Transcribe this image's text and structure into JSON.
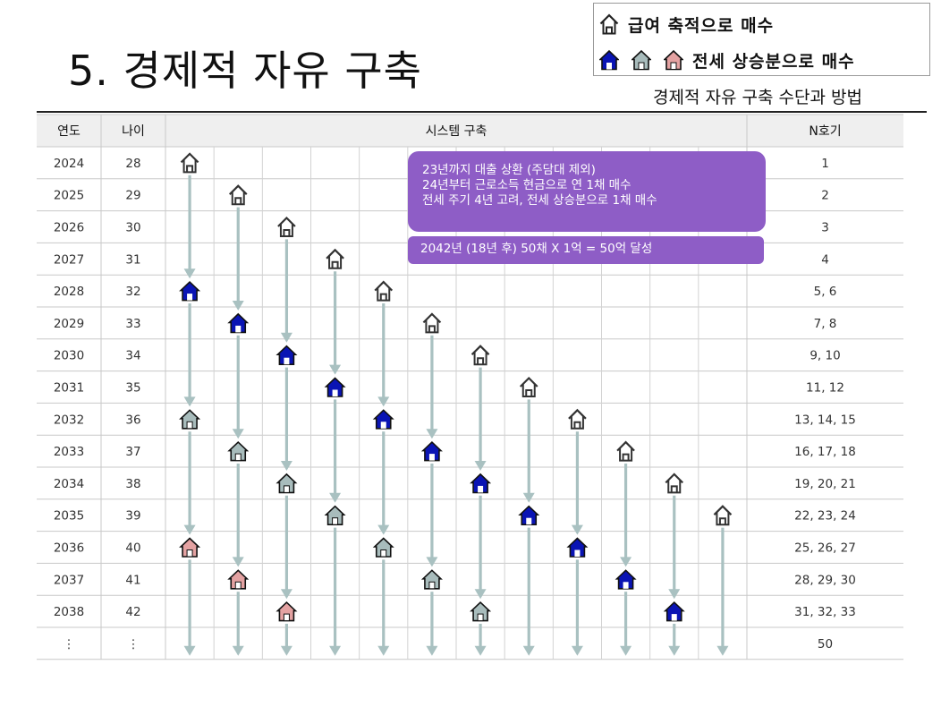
{
  "title": "5. 경제적 자유 구축",
  "subtitle": "경제적 자유 구축 수단과 방법",
  "legend": {
    "row1_text": "급여 축적으로 매수",
    "row2_text": "전세 상승분으로 매수",
    "icons": [
      "house-outline-icon",
      "house-blue-icon",
      "house-gray-icon",
      "house-pink-icon"
    ]
  },
  "colors": {
    "blue": "#0a14b4",
    "gray": "#a8bcbc",
    "pink": "#e4a2a2",
    "arrow": "#a9c1c1",
    "popup": "#8e5dc6",
    "header_bg": "#efefef"
  },
  "table": {
    "headers": [
      "연도",
      "나이",
      "시스템 구축",
      "N호기"
    ],
    "rows": [
      {
        "year": "2024",
        "age": "28",
        "n": "1"
      },
      {
        "year": "2025",
        "age": "29",
        "n": "2"
      },
      {
        "year": "2026",
        "age": "30",
        "n": "3"
      },
      {
        "year": "2027",
        "age": "31",
        "n": "4"
      },
      {
        "year": "2028",
        "age": "32",
        "n": "5, 6"
      },
      {
        "year": "2029",
        "age": "33",
        "n": "7, 8"
      },
      {
        "year": "2030",
        "age": "34",
        "n": "9, 10"
      },
      {
        "year": "2031",
        "age": "35",
        "n": "11, 12"
      },
      {
        "year": "2032",
        "age": "36",
        "n": "13, 14, 15"
      },
      {
        "year": "2033",
        "age": "37",
        "n": "16, 17, 18"
      },
      {
        "year": "2034",
        "age": "38",
        "n": "19, 20, 21"
      },
      {
        "year": "2035",
        "age": "39",
        "n": "22, 23, 24"
      },
      {
        "year": "2036",
        "age": "40",
        "n": "25, 26, 27"
      },
      {
        "year": "2037",
        "age": "41",
        "n": "28, 29, 30"
      },
      {
        "year": "2038",
        "age": "42",
        "n": "31, 32, 33"
      },
      {
        "year": "⋮",
        "age": "⋮",
        "n": "50"
      }
    ]
  },
  "houses": [
    {
      "col": 0,
      "row": 0,
      "type": "outline"
    },
    {
      "col": 0,
      "row": 4,
      "type": "blue"
    },
    {
      "col": 0,
      "row": 8,
      "type": "gray"
    },
    {
      "col": 0,
      "row": 12,
      "type": "pink"
    },
    {
      "col": 1,
      "row": 1,
      "type": "outline"
    },
    {
      "col": 1,
      "row": 5,
      "type": "blue"
    },
    {
      "col": 1,
      "row": 9,
      "type": "gray"
    },
    {
      "col": 1,
      "row": 13,
      "type": "pink"
    },
    {
      "col": 2,
      "row": 2,
      "type": "outline"
    },
    {
      "col": 2,
      "row": 6,
      "type": "blue"
    },
    {
      "col": 2,
      "row": 10,
      "type": "gray"
    },
    {
      "col": 2,
      "row": 14,
      "type": "pink"
    },
    {
      "col": 3,
      "row": 3,
      "type": "outline"
    },
    {
      "col": 3,
      "row": 7,
      "type": "blue"
    },
    {
      "col": 3,
      "row": 11,
      "type": "gray"
    },
    {
      "col": 4,
      "row": 4,
      "type": "outline"
    },
    {
      "col": 4,
      "row": 8,
      "type": "blue"
    },
    {
      "col": 4,
      "row": 12,
      "type": "gray"
    },
    {
      "col": 5,
      "row": 5,
      "type": "outline"
    },
    {
      "col": 5,
      "row": 9,
      "type": "blue"
    },
    {
      "col": 5,
      "row": 13,
      "type": "gray"
    },
    {
      "col": 6,
      "row": 6,
      "type": "outline"
    },
    {
      "col": 6,
      "row": 10,
      "type": "blue"
    },
    {
      "col": 6,
      "row": 14,
      "type": "gray"
    },
    {
      "col": 7,
      "row": 7,
      "type": "outline"
    },
    {
      "col": 7,
      "row": 11,
      "type": "blue"
    },
    {
      "col": 8,
      "row": 8,
      "type": "outline"
    },
    {
      "col": 8,
      "row": 12,
      "type": "blue"
    },
    {
      "col": 9,
      "row": 9,
      "type": "outline"
    },
    {
      "col": 9,
      "row": 13,
      "type": "blue"
    },
    {
      "col": 10,
      "row": 10,
      "type": "outline"
    },
    {
      "col": 10,
      "row": 14,
      "type": "blue"
    },
    {
      "col": 11,
      "row": 11,
      "type": "outline"
    }
  ],
  "popup": {
    "lines": [
      "23년까지 대출 상환 (주담대 제외)",
      "24년부터 근로소득 현금으로 연 1채 매수",
      "전세 주기 4년 고려, 전세 상승분으로 1채 매수"
    ],
    "goal": "2042년 (18년  후) 50채 X 1억 = 50억 달성"
  }
}
